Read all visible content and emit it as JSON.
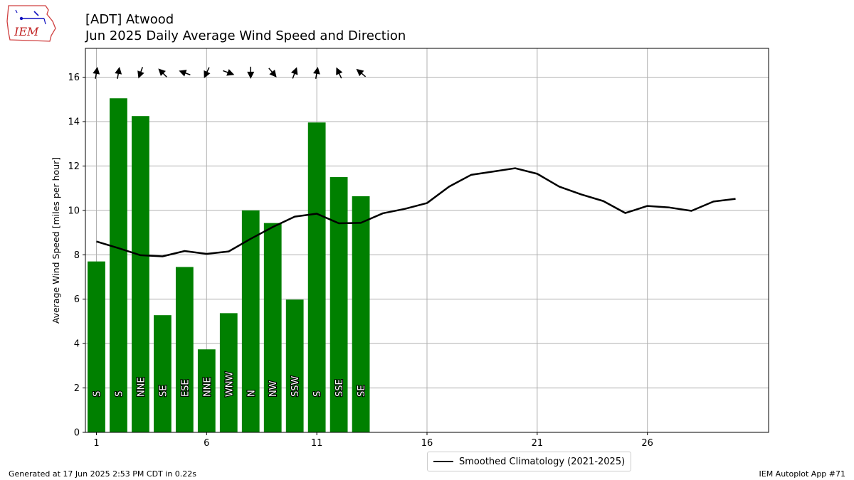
{
  "header": {
    "logo_text": "IEM",
    "title_line1": "[ADT] Atwood",
    "title_line2": "Jun 2025 Daily Average Wind Speed and Direction"
  },
  "chart_data": {
    "type": "bar",
    "title": "[ADT] Atwood Jun 2025 Daily Average Wind Speed and Direction",
    "xlabel": "",
    "ylabel": "Average Wind Speed [miles per hour]",
    "xlim": [
      0.5,
      31.5
    ],
    "ylim": [
      0,
      17.3
    ],
    "x_ticks": [
      1,
      6,
      11,
      16,
      21,
      26
    ],
    "y_ticks": [
      0,
      2,
      4,
      6,
      8,
      10,
      12,
      14,
      16
    ],
    "grid": true,
    "bar_color": "#008000",
    "days": [
      1,
      2,
      3,
      4,
      5,
      6,
      7,
      8,
      9,
      10,
      11,
      12,
      13
    ],
    "values": [
      7.7,
      15.05,
      14.25,
      5.28,
      7.45,
      3.74,
      5.37,
      10.0,
      9.43,
      5.98,
      13.96,
      11.5,
      10.64
    ],
    "directions": [
      "S",
      "S",
      "NNE",
      "SE",
      "ESE",
      "NNE",
      "WNW",
      "N",
      "NW",
      "SSW",
      "S",
      "SSE",
      "SE"
    ],
    "direction_degrees": [
      190,
      190,
      20,
      135,
      110,
      25,
      290,
      0,
      320,
      200,
      190,
      155,
      130
    ],
    "series": [
      {
        "name": "Smoothed Climatology (2021-2025)",
        "x": [
          1,
          2,
          3,
          4,
          5,
          6,
          7,
          8,
          9,
          10,
          11,
          12,
          13,
          14,
          15,
          16,
          17,
          18,
          19,
          20,
          21,
          22,
          23,
          24,
          25,
          26,
          27,
          28,
          29,
          30
        ],
        "values": [
          8.6,
          8.3,
          7.98,
          7.93,
          8.17,
          8.04,
          8.15,
          8.72,
          9.25,
          9.72,
          9.85,
          9.42,
          9.44,
          9.87,
          10.07,
          10.33,
          11.07,
          11.6,
          11.75,
          11.9,
          11.65,
          11.07,
          10.72,
          10.42,
          9.88,
          10.2,
          10.13,
          9.98,
          10.4,
          10.52
        ],
        "color": "#000000"
      }
    ],
    "legend_position": "bottom-center",
    "legend_label": "Smoothed Climatology (2021-2025)"
  },
  "footer": {
    "left": "Generated at 17 Jun 2025 2:53 PM CDT in 0.22s",
    "right": "IEM Autoplot App #71"
  }
}
